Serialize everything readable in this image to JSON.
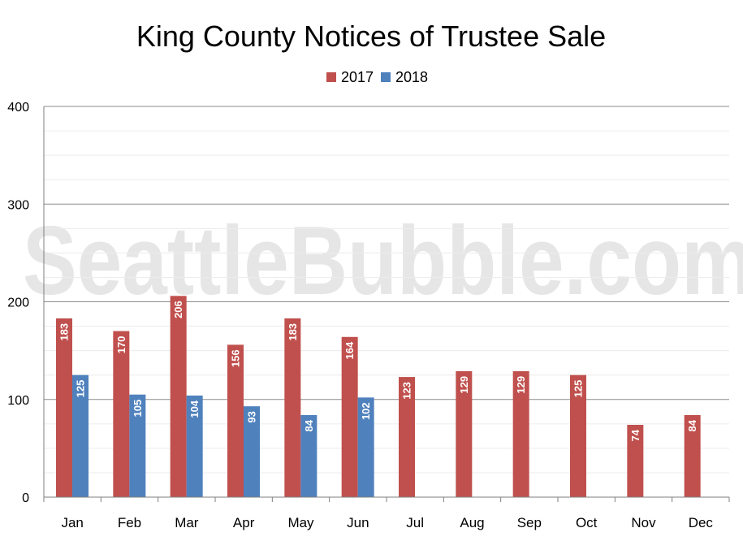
{
  "chart_data": {
    "type": "bar",
    "title": "King County Notices of Trustee Sale",
    "watermark": "SeattleBubble.com",
    "categories": [
      "Jan",
      "Feb",
      "Mar",
      "Apr",
      "May",
      "Jun",
      "Jul",
      "Aug",
      "Sep",
      "Oct",
      "Nov",
      "Dec"
    ],
    "series": [
      {
        "name": "2017",
        "color": "#c0504d",
        "values": [
          183,
          170,
          206,
          156,
          183,
          164,
          123,
          129,
          129,
          125,
          74,
          84
        ]
      },
      {
        "name": "2018",
        "color": "#4f81bd",
        "values": [
          125,
          105,
          104,
          93,
          84,
          102,
          null,
          null,
          null,
          null,
          null,
          null
        ]
      }
    ],
    "ylim": [
      0,
      400
    ],
    "yticks": [
      0,
      100,
      200,
      300,
      400
    ],
    "grid": true,
    "minor_grid": true,
    "legend_position": "top-center",
    "data_labels": true
  }
}
